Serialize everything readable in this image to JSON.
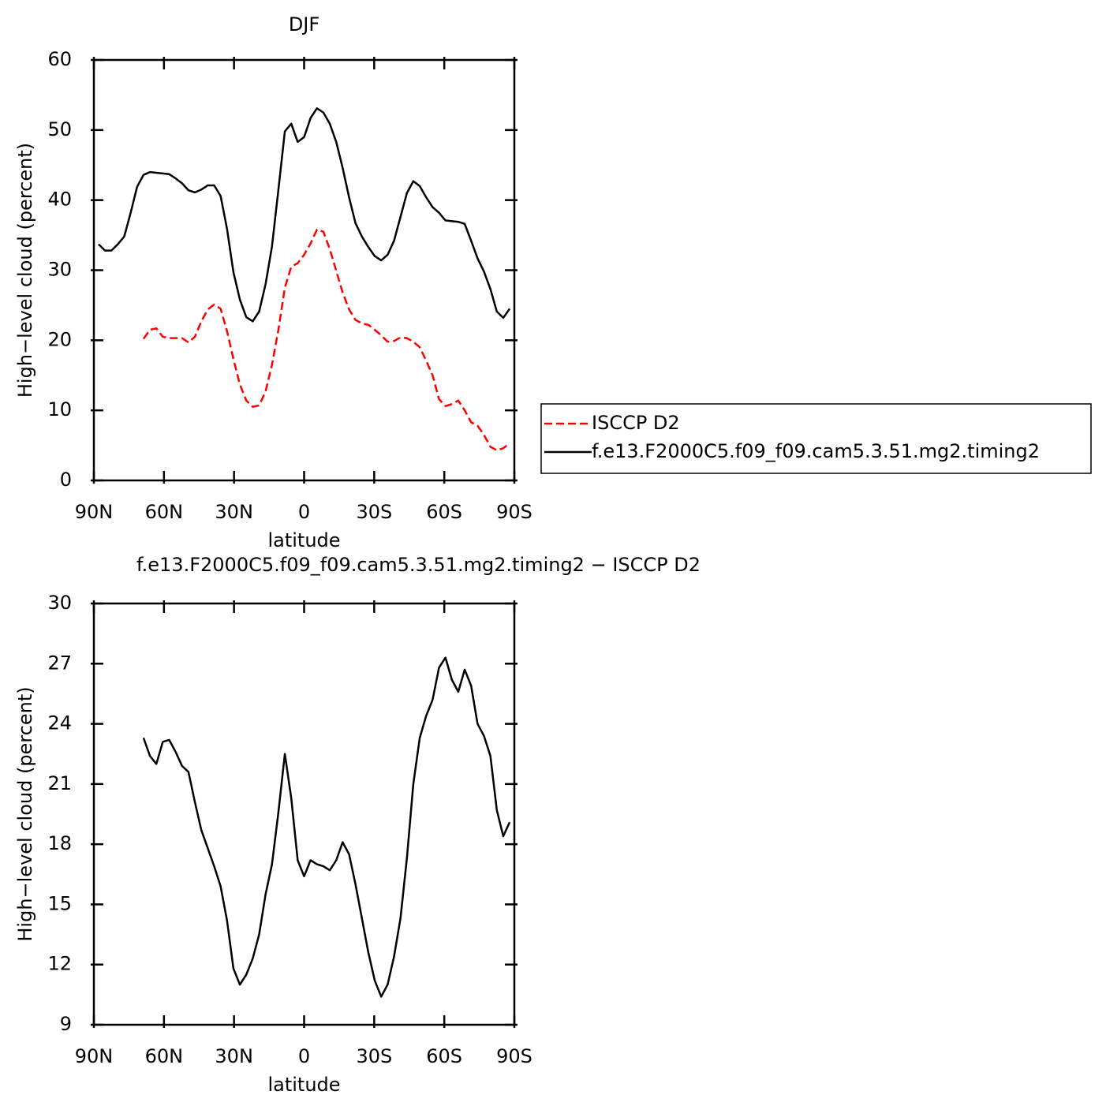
{
  "chart_data": [
    {
      "type": "line",
      "title": "DJF",
      "xlabel": "latitude",
      "ylabel": "High−level cloud (percent)",
      "xlim": [
        90,
        -90
      ],
      "xticks": [
        {
          "value": 90,
          "label": "90N"
        },
        {
          "value": 60,
          "label": "60N"
        },
        {
          "value": 30,
          "label": "30N"
        },
        0,
        {
          "value": -30,
          "label": "30S"
        },
        {
          "value": -60,
          "label": "60S"
        },
        {
          "value": -90,
          "label": "90S"
        }
      ],
      "ylim": [
        0,
        60
      ],
      "yticks": [
        0,
        10,
        20,
        30,
        40,
        50,
        60
      ],
      "legend": "right",
      "x": [
        88,
        85.25,
        82.5,
        79.75,
        77,
        74.25,
        71.5,
        68.75,
        66,
        63.25,
        60.5,
        57.75,
        55,
        52.25,
        49.5,
        46.75,
        44,
        41.25,
        38.5,
        35.75,
        33,
        30.25,
        27.5,
        24.75,
        22,
        19.25,
        16.5,
        13.75,
        11,
        8.25,
        5.5,
        2.75,
        0,
        -2.75,
        -5.5,
        -8.25,
        -11,
        -13.75,
        -16.5,
        -19.25,
        -22,
        -24.75,
        -27.5,
        -30.25,
        -33,
        -35.75,
        -38.5,
        -41.25,
        -44,
        -46.75,
        -49.5,
        -52.25,
        -55,
        -57.75,
        -60.5,
        -63.25,
        -66,
        -68.75,
        -71.5,
        -74.25,
        -77,
        -79.75,
        -82.5,
        -85.25,
        -88
      ],
      "series": [
        {
          "name": "ISCCP D2",
          "color": "#ff0000",
          "dashed": true,
          "values": [
            null,
            null,
            null,
            null,
            null,
            null,
            null,
            20.2,
            21.5,
            21.7,
            20.5,
            20.3,
            20.3,
            20.3,
            19.7,
            20.5,
            22.7,
            24.4,
            25.1,
            24.5,
            21.3,
            17.3,
            13.7,
            11.4,
            10.5,
            10.7,
            12.7,
            16.5,
            21.5,
            27.5,
            30.5,
            31.0,
            32.2,
            33.8,
            35.8,
            35.5,
            33.0,
            29.9,
            26.8,
            24.4,
            22.9,
            22.4,
            22.2,
            21.5,
            20.7,
            19.8,
            19.9,
            20.4,
            20.3,
            19.8,
            19.0,
            17.1,
            15.0,
            11.6,
            10.6,
            10.9,
            11.4,
            10.0,
            8.3,
            7.8,
            6.5,
            4.8,
            4.3,
            4.6,
            5.3
          ]
        },
        {
          "name": "f.e13.F2000C5.f09_f09.cam5.3.51.mg2.timing2",
          "color": "#000000",
          "dashed": false,
          "values": [
            33.7,
            32.8,
            32.8,
            33.7,
            34.8,
            38.2,
            41.9,
            43.6,
            44.0,
            43.9,
            43.8,
            43.7,
            43.1,
            42.4,
            41.4,
            41.1,
            41.5,
            42.1,
            42.1,
            40.6,
            35.9,
            29.7,
            25.8,
            23.3,
            22.7,
            24.1,
            28.0,
            33.4,
            41.5,
            49.8,
            50.9,
            48.3,
            49.0,
            51.7,
            53.1,
            52.5,
            50.9,
            48.3,
            44.6,
            40.4,
            36.7,
            34.8,
            33.3,
            32.0,
            31.4,
            32.2,
            34.2,
            37.6,
            41.0,
            42.7,
            42.0,
            40.4,
            39.0,
            38.2,
            37.1,
            37.0,
            36.9,
            36.6,
            34.2,
            31.7,
            29.8,
            27.3,
            24.1,
            23.2,
            24.5
          ]
        }
      ]
    },
    {
      "type": "line",
      "title": "f.e13.F2000C5.f09_f09.cam5.3.51.mg2.timing2 − ISCCP D2",
      "xlabel": "latitude",
      "ylabel": "High−level cloud (percent)",
      "xlim": [
        90,
        -90
      ],
      "xticks": [
        {
          "value": 90,
          "label": "90N"
        },
        {
          "value": 60,
          "label": "60N"
        },
        {
          "value": 30,
          "label": "30N"
        },
        0,
        {
          "value": -30,
          "label": "30S"
        },
        {
          "value": -60,
          "label": "60S"
        },
        {
          "value": -90,
          "label": "90S"
        }
      ],
      "ylim": [
        9,
        30
      ],
      "yticks": [
        9,
        12,
        15,
        18,
        21,
        24,
        27,
        30
      ],
      "x": [
        88,
        85.25,
        82.5,
        79.75,
        77,
        74.25,
        71.5,
        68.75,
        66,
        63.25,
        60.5,
        57.75,
        55,
        52.25,
        49.5,
        46.75,
        44,
        41.25,
        38.5,
        35.75,
        33,
        30.25,
        27.5,
        24.75,
        22,
        19.25,
        16.5,
        13.75,
        11,
        8.25,
        5.5,
        2.75,
        0,
        -2.75,
        -5.5,
        -8.25,
        -11,
        -13.75,
        -16.5,
        -19.25,
        -22,
        -24.75,
        -27.5,
        -30.25,
        -33,
        -35.75,
        -38.5,
        -41.25,
        -44,
        -46.75,
        -49.5,
        -52.25,
        -55,
        -57.75,
        -60.5,
        -63.25,
        -66,
        -68.75,
        -71.5,
        -74.25,
        -77,
        -79.75,
        -82.5,
        -85.25,
        -88
      ],
      "series": [
        {
          "color": "#000000",
          "dashed": false,
          "values": [
            null,
            null,
            null,
            null,
            null,
            null,
            null,
            23.3,
            22.4,
            22.0,
            23.1,
            23.2,
            22.6,
            21.9,
            21.6,
            20.1,
            18.7,
            17.8,
            16.9,
            15.9,
            14.2,
            11.8,
            11.0,
            11.5,
            12.3,
            13.5,
            15.5,
            17.0,
            19.6,
            22.5,
            20.3,
            17.2,
            16.4,
            17.2,
            17.0,
            16.9,
            16.7,
            17.2,
            18.1,
            17.5,
            16.0,
            14.3,
            12.6,
            11.2,
            10.4,
            11.0,
            12.4,
            14.3,
            17.3,
            21.0,
            23.3,
            24.4,
            25.2,
            26.8,
            27.3,
            26.2,
            25.6,
            26.7,
            25.9,
            24.0,
            23.4,
            22.4,
            19.7,
            18.4,
            19.1
          ]
        }
      ]
    }
  ]
}
